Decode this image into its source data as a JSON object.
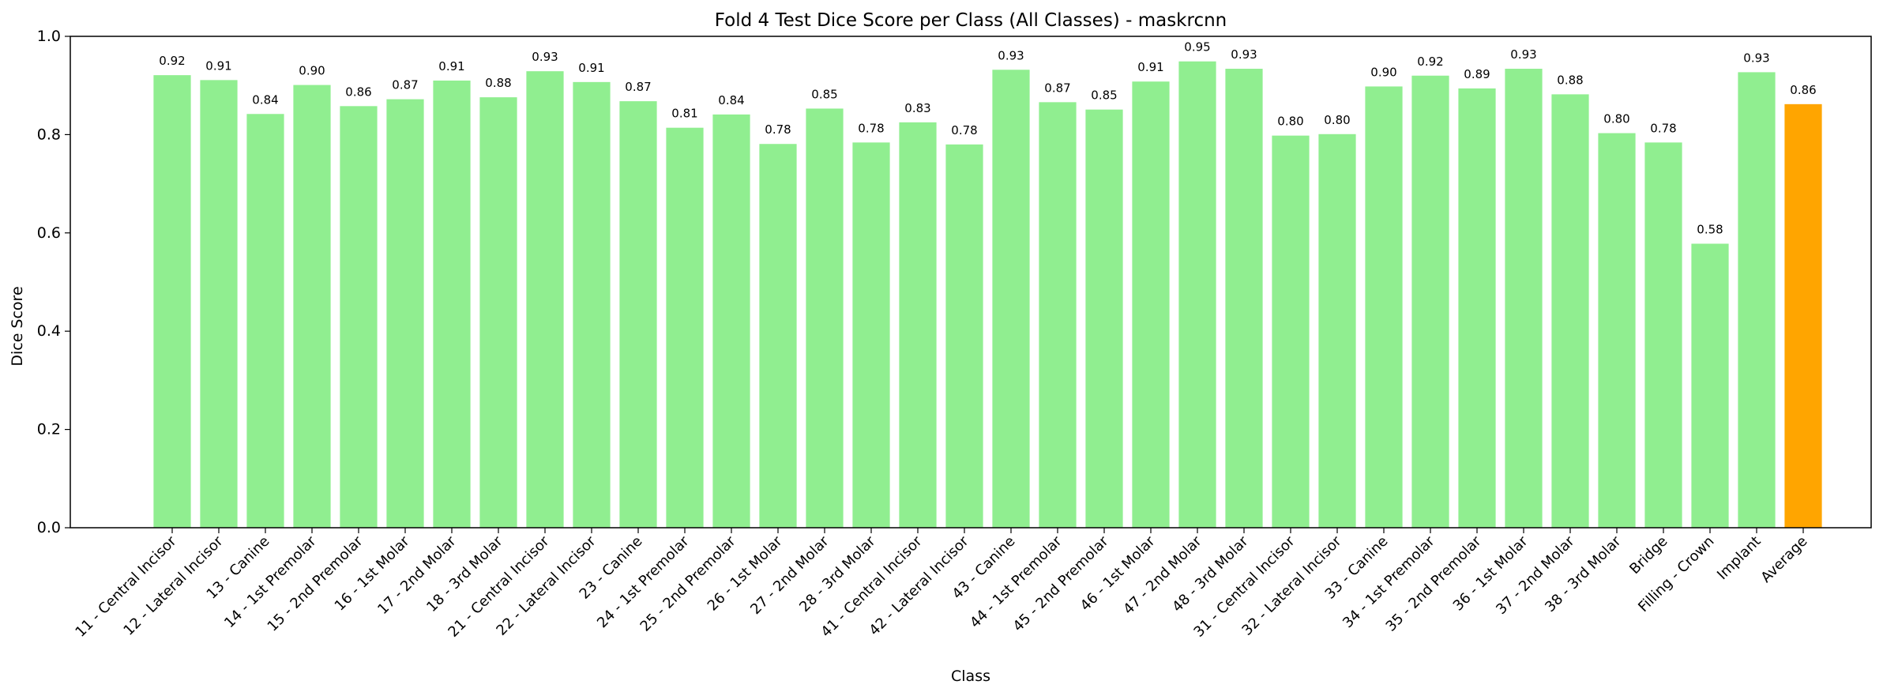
{
  "chart_data": {
    "type": "bar",
    "title": "Fold 4 Test Dice Score per Class (All Classes) - maskrcnn",
    "xlabel": "Class",
    "ylabel": "Dice Score",
    "ylim": [
      0,
      1.0
    ],
    "yticks": [
      "0.0",
      "0.2",
      "0.4",
      "0.6",
      "0.8",
      "1.0"
    ],
    "grid": false,
    "legend": "none",
    "colors": {
      "bar": "#90ee90",
      "average": "#ffa500",
      "axis": "#000000"
    },
    "categories": [
      "11 - Central Incisor",
      "12 - Lateral Incisor",
      "13 - Canine",
      "14 - 1st Premolar",
      "15 - 2nd Premolar",
      "16 - 1st Molar",
      "17 - 2nd Molar",
      "18 - 3rd Molar",
      "21 - Central Incisor",
      "22 - Lateral Incisor",
      "23 - Canine",
      "24 - 1st Premolar",
      "25 - 2nd Premolar",
      "26 - 1st Molar",
      "27 - 2nd Molar",
      "28 - 3rd Molar",
      "41 - Central Incisor",
      "42 - Lateral Incisor",
      "43 - Canine",
      "44 - 1st Premolar",
      "45 - 2nd Premolar",
      "46 - 1st Molar",
      "47 - 2nd Molar",
      "48 - 3rd Molar",
      "31 - Central Incisor",
      "32 - Lateral Incisor",
      "33 - Canine",
      "34 - 1st Premolar",
      "35 - 2nd Premolar",
      "36 - 1st Molar",
      "37 - 2nd Molar",
      "38 - 3rd Molar",
      "Bridge",
      "Filling - Crown",
      "Implant",
      "Average"
    ],
    "values": [
      0.921,
      0.911,
      0.842,
      0.901,
      0.858,
      0.872,
      0.91,
      0.876,
      0.929,
      0.907,
      0.868,
      0.814,
      0.841,
      0.781,
      0.853,
      0.784,
      0.825,
      0.78,
      0.932,
      0.866,
      0.851,
      0.908,
      0.949,
      0.934,
      0.798,
      0.801,
      0.898,
      0.92,
      0.894,
      0.934,
      0.882,
      0.803,
      0.784,
      0.578,
      0.927,
      0.862
    ],
    "value_labels": [
      "0.92",
      "0.91",
      "0.84",
      "0.90",
      "0.86",
      "0.87",
      "0.91",
      "0.88",
      "0.93",
      "0.91",
      "0.87",
      "0.81",
      "0.84",
      "0.78",
      "0.85",
      "0.78",
      "0.83",
      "0.78",
      "0.93",
      "0.87",
      "0.85",
      "0.91",
      "0.95",
      "0.93",
      "0.80",
      "0.80",
      "0.90",
      "0.92",
      "0.89",
      "0.93",
      "0.88",
      "0.80",
      "0.78",
      "0.58",
      "0.93",
      "0.86"
    ],
    "highlight_index": 35
  }
}
